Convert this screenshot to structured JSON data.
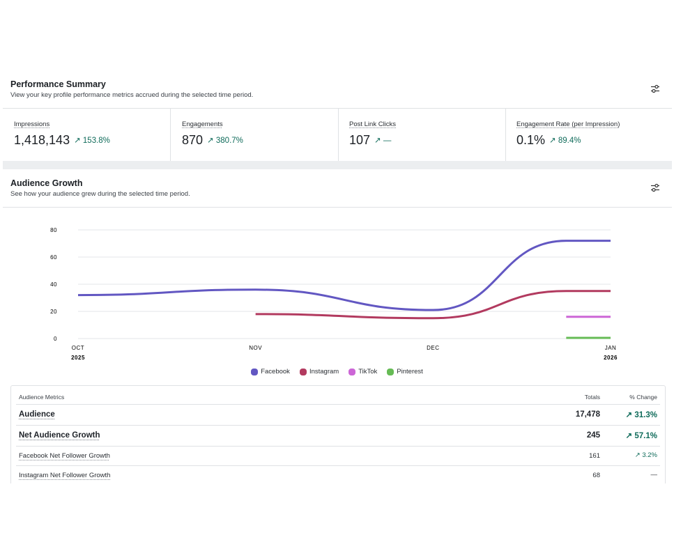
{
  "performance": {
    "title": "Performance Summary",
    "subtitle": "View your key profile performance metrics accrued during the selected time period.",
    "settings_icon": "sliders-icon",
    "metrics": [
      {
        "label": "Impressions",
        "value": "1,418,143",
        "change": "↗ 153.8%"
      },
      {
        "label": "Engagements",
        "value": "870",
        "change": "↗ 380.7%"
      },
      {
        "label": "Post Link Clicks",
        "value": "107",
        "change": "↗ —"
      },
      {
        "label": "Engagement Rate (per Impression)",
        "value": "0.1%",
        "change": "↗ 89.4%"
      }
    ]
  },
  "audience": {
    "title": "Audience Growth",
    "subtitle": "See how your audience grew during the selected time period.",
    "settings_icon": "sliders-icon"
  },
  "chart_data": {
    "type": "line",
    "x_ticks": [
      {
        "month": "OCT",
        "year": "2025"
      },
      {
        "month": "NOV",
        "year": ""
      },
      {
        "month": "DEC",
        "year": ""
      },
      {
        "month": "JAN",
        "year": "2026"
      }
    ],
    "ylim": [
      0,
      80
    ],
    "y_ticks": [
      "0",
      "20",
      "40",
      "60",
      "80"
    ],
    "grid": true,
    "series": [
      {
        "name": "Facebook",
        "color": "#6257c2",
        "points": [
          [
            0,
            32
          ],
          [
            1,
            36
          ],
          [
            2,
            21
          ],
          [
            2.75,
            72
          ],
          [
            3,
            72
          ]
        ]
      },
      {
        "name": "Instagram",
        "color": "#b23a5f",
        "points": [
          [
            1,
            18
          ],
          [
            2,
            15
          ],
          [
            2.75,
            35
          ],
          [
            3,
            35
          ]
        ]
      },
      {
        "name": "TikTok",
        "color": "#cc66d6",
        "points": [
          [
            2.75,
            16
          ],
          [
            3,
            16
          ]
        ]
      },
      {
        "name": "Pinterest",
        "color": "#66bb55",
        "points": [
          [
            2.75,
            0.5
          ],
          [
            3,
            0.5
          ]
        ]
      }
    ]
  },
  "table": {
    "header": {
      "label": "Audience Metrics",
      "totals": "Totals",
      "change": "% Change"
    },
    "rows": [
      {
        "label": "Audience",
        "total": "17,478",
        "change": "↗ 31.3%"
      },
      {
        "label": "Net Audience Growth",
        "total": "245",
        "change": "↗ 57.1%"
      },
      {
        "label": "Facebook Net Follower Growth",
        "total": "161",
        "change": "↗ 3.2%"
      },
      {
        "label": "Instagram Net Follower Growth",
        "total": "68",
        "change": "—"
      }
    ]
  }
}
